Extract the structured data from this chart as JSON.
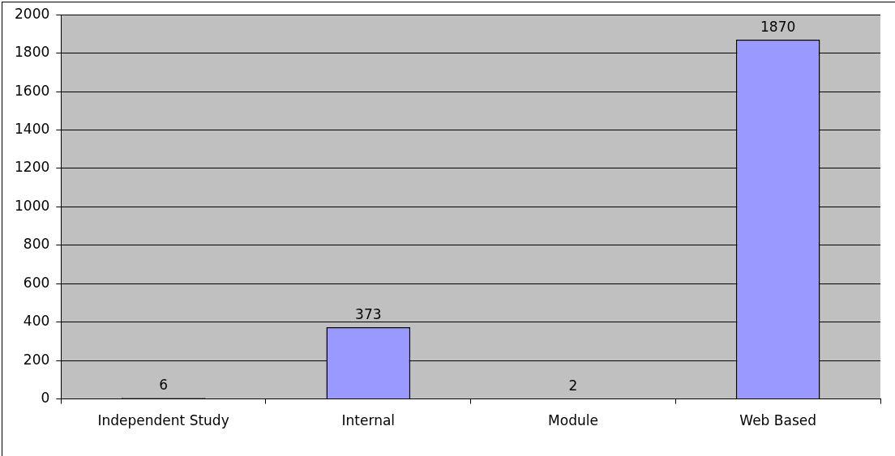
{
  "chart_data": {
    "type": "bar",
    "categories": [
      "Independent Study",
      "Internal",
      "Module",
      "Web Based"
    ],
    "values": [
      6,
      373,
      2,
      1870
    ],
    "color": "#9999ff",
    "ylim": [
      0,
      2000
    ],
    "yticks": [
      0,
      200,
      400,
      600,
      800,
      1000,
      1200,
      1400,
      1600,
      1800,
      2000
    ],
    "grid": "y",
    "legend": false,
    "data_labels": true
  }
}
